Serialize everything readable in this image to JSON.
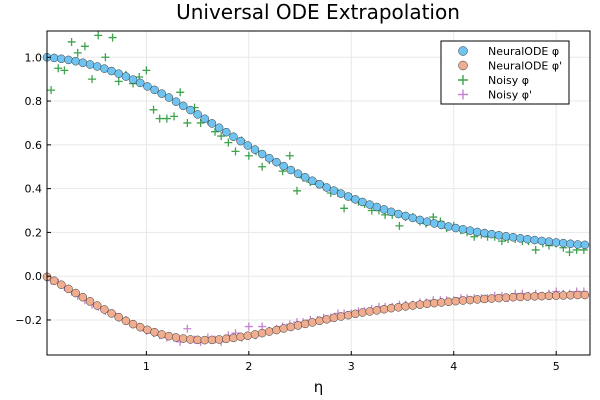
{
  "chart_data": {
    "type": "scatter",
    "title": "Universal ODE Extrapolation",
    "xlabel": "η",
    "ylabel": "",
    "xlim": [
      0.03,
      5.33
    ],
    "ylim": [
      -0.36,
      1.12
    ],
    "xticks": [
      1,
      2,
      3,
      4,
      5
    ],
    "yticks": [
      -0.2,
      0.0,
      0.2,
      0.4,
      0.6,
      0.8,
      1.0
    ],
    "xtick_labels": [
      "1",
      "2",
      "3",
      "4",
      "5"
    ],
    "ytick_labels": [
      "−0.2",
      "0.0",
      "0.2",
      "0.4",
      "0.6",
      "0.8",
      "1.0"
    ],
    "grid": true,
    "legend_position": "top-right",
    "series": [
      {
        "name": "NeuralODE φ",
        "marker": "circle",
        "color": "#6ec3f0",
        "x": [
          0.03,
          0.1,
          0.17,
          0.24,
          0.31,
          0.38,
          0.45,
          0.52,
          0.59,
          0.66,
          0.73,
          0.8,
          0.87,
          0.94,
          1.01,
          1.08,
          1.15,
          1.22,
          1.29,
          1.36,
          1.43,
          1.5,
          1.57,
          1.64,
          1.71,
          1.78,
          1.85,
          1.92,
          1.99,
          2.06,
          2.13,
          2.2,
          2.27,
          2.34,
          2.41,
          2.48,
          2.55,
          2.62,
          2.69,
          2.76,
          2.83,
          2.9,
          2.97,
          3.04,
          3.11,
          3.18,
          3.25,
          3.32,
          3.39,
          3.46,
          3.53,
          3.6,
          3.67,
          3.74,
          3.81,
          3.88,
          3.95,
          4.02,
          4.09,
          4.16,
          4.23,
          4.3,
          4.37,
          4.44,
          4.51,
          4.58,
          4.65,
          4.72,
          4.79,
          4.86,
          4.93,
          5.0,
          5.07,
          5.14,
          5.21,
          5.28
        ],
        "y": [
          1.0,
          0.997,
          0.993,
          0.988,
          0.982,
          0.975,
          0.967,
          0.958,
          0.948,
          0.937,
          0.925,
          0.912,
          0.898,
          0.883,
          0.867,
          0.851,
          0.834,
          0.816,
          0.797,
          0.778,
          0.759,
          0.739,
          0.719,
          0.698,
          0.678,
          0.658,
          0.637,
          0.617,
          0.597,
          0.578,
          0.558,
          0.539,
          0.521,
          0.503,
          0.485,
          0.468,
          0.452,
          0.436,
          0.42,
          0.405,
          0.391,
          0.377,
          0.364,
          0.351,
          0.339,
          0.327,
          0.316,
          0.305,
          0.294,
          0.284,
          0.275,
          0.266,
          0.257,
          0.249,
          0.241,
          0.234,
          0.227,
          0.22,
          0.214,
          0.208,
          0.202,
          0.197,
          0.192,
          0.187,
          0.182,
          0.178,
          0.173,
          0.169,
          0.165,
          0.161,
          0.158,
          0.154,
          0.151,
          0.148,
          0.145,
          0.143
        ]
      },
      {
        "name": "NeuralODE φ'",
        "marker": "circle",
        "color": "#f0ad8f",
        "x": [
          0.03,
          0.1,
          0.17,
          0.24,
          0.31,
          0.38,
          0.45,
          0.52,
          0.59,
          0.66,
          0.73,
          0.8,
          0.87,
          0.94,
          1.01,
          1.08,
          1.15,
          1.22,
          1.29,
          1.36,
          1.43,
          1.5,
          1.57,
          1.64,
          1.71,
          1.78,
          1.85,
          1.92,
          1.99,
          2.06,
          2.13,
          2.2,
          2.27,
          2.34,
          2.41,
          2.48,
          2.55,
          2.62,
          2.69,
          2.76,
          2.83,
          2.9,
          2.97,
          3.04,
          3.11,
          3.18,
          3.25,
          3.32,
          3.39,
          3.46,
          3.53,
          3.6,
          3.67,
          3.74,
          3.81,
          3.88,
          3.95,
          4.02,
          4.09,
          4.16,
          4.23,
          4.3,
          4.37,
          4.44,
          4.51,
          4.58,
          4.65,
          4.72,
          4.79,
          4.86,
          4.93,
          5.0,
          5.07,
          5.14,
          5.21,
          5.28
        ],
        "y": [
          -0.003,
          -0.021,
          -0.039,
          -0.058,
          -0.077,
          -0.096,
          -0.115,
          -0.134,
          -0.152,
          -0.17,
          -0.187,
          -0.204,
          -0.219,
          -0.233,
          -0.245,
          -0.256,
          -0.266,
          -0.274,
          -0.28,
          -0.285,
          -0.289,
          -0.291,
          -0.292,
          -0.291,
          -0.289,
          -0.286,
          -0.282,
          -0.277,
          -0.272,
          -0.266,
          -0.26,
          -0.253,
          -0.246,
          -0.239,
          -0.232,
          -0.225,
          -0.218,
          -0.211,
          -0.204,
          -0.197,
          -0.19,
          -0.184,
          -0.178,
          -0.172,
          -0.166,
          -0.161,
          -0.156,
          -0.151,
          -0.146,
          -0.142,
          -0.138,
          -0.134,
          -0.13,
          -0.126,
          -0.123,
          -0.12,
          -0.117,
          -0.114,
          -0.111,
          -0.109,
          -0.106,
          -0.104,
          -0.102,
          -0.1,
          -0.098,
          -0.096,
          -0.095,
          -0.093,
          -0.092,
          -0.091,
          -0.09,
          -0.089,
          -0.088,
          -0.087,
          -0.086,
          -0.086
        ]
      },
      {
        "name": "Noisy φ",
        "marker": "plus",
        "color": "#3da44d",
        "x": [
          0.07,
          0.14,
          0.2,
          0.27,
          0.33,
          0.4,
          0.47,
          0.53,
          0.6,
          0.67,
          0.73,
          0.8,
          0.87,
          0.93,
          1.0,
          1.07,
          1.13,
          1.2,
          1.27,
          1.33,
          1.4,
          1.47,
          1.53,
          1.6,
          1.67,
          1.73,
          1.8,
          1.87,
          1.93,
          2.0,
          2.07,
          2.13,
          2.2,
          2.27,
          2.33,
          2.4,
          2.47,
          2.53,
          2.6,
          2.67,
          2.73,
          2.8,
          2.87,
          2.93,
          3.0,
          3.07,
          3.13,
          3.2,
          3.27,
          3.33,
          3.4,
          3.47,
          3.53,
          3.6,
          3.67,
          3.73,
          3.8,
          3.87,
          3.93,
          4.0,
          4.07,
          4.13,
          4.2,
          4.27,
          4.33,
          4.4,
          4.47,
          4.53,
          4.6,
          4.67,
          4.73,
          4.8,
          4.87,
          4.93,
          5.0,
          5.07,
          5.13,
          5.2,
          5.27
        ],
        "y": [
          0.85,
          0.95,
          0.94,
          1.07,
          1.02,
          1.05,
          0.9,
          1.1,
          1.0,
          1.09,
          0.89,
          0.92,
          0.88,
          0.91,
          0.94,
          0.76,
          0.72,
          0.72,
          0.73,
          0.84,
          0.7,
          0.77,
          0.7,
          0.71,
          0.66,
          0.64,
          0.61,
          0.57,
          0.62,
          0.55,
          0.57,
          0.5,
          0.53,
          0.52,
          0.48,
          0.55,
          0.39,
          0.45,
          0.43,
          0.42,
          0.41,
          0.38,
          0.38,
          0.31,
          0.36,
          0.34,
          0.33,
          0.3,
          0.3,
          0.28,
          0.28,
          0.23,
          0.27,
          0.27,
          0.25,
          0.24,
          0.27,
          0.25,
          0.22,
          0.23,
          0.21,
          0.2,
          0.18,
          0.19,
          0.18,
          0.18,
          0.16,
          0.17,
          0.17,
          0.16,
          0.16,
          0.12,
          0.15,
          0.14,
          0.15,
          0.13,
          0.11,
          0.12,
          0.12
        ]
      },
      {
        "name": "Noisy φ'",
        "marker": "plus",
        "color": "#c683d6",
        "x": [
          0.07,
          0.14,
          0.2,
          0.27,
          0.33,
          0.4,
          0.47,
          0.53,
          0.6,
          0.67,
          0.73,
          0.8,
          0.87,
          0.93,
          1.0,
          1.07,
          1.13,
          1.2,
          1.27,
          1.33,
          1.4,
          1.47,
          1.53,
          1.6,
          1.67,
          1.73,
          1.8,
          1.87,
          1.93,
          2.0,
          2.07,
          2.13,
          2.2,
          2.27,
          2.33,
          2.4,
          2.47,
          2.53,
          2.6,
          2.67,
          2.73,
          2.8,
          2.87,
          2.93,
          3.0,
          3.07,
          3.13,
          3.2,
          3.27,
          3.33,
          3.4,
          3.47,
          3.53,
          3.6,
          3.67,
          3.73,
          3.8,
          3.87,
          3.93,
          4.0,
          4.07,
          4.13,
          4.2,
          4.27,
          4.33,
          4.4,
          4.47,
          4.53,
          4.6,
          4.67,
          4.73,
          4.8,
          4.87,
          4.93,
          5.0,
          5.07,
          5.13,
          5.2,
          5.27
        ],
        "y": [
          -0.02,
          -0.03,
          -0.05,
          -0.07,
          -0.09,
          -0.11,
          -0.13,
          -0.14,
          -0.16,
          -0.17,
          -0.19,
          -0.2,
          -0.22,
          -0.23,
          -0.25,
          -0.26,
          -0.27,
          -0.28,
          -0.28,
          -0.3,
          -0.24,
          -0.29,
          -0.3,
          -0.28,
          -0.29,
          -0.3,
          -0.27,
          -0.26,
          -0.28,
          -0.23,
          -0.27,
          -0.23,
          -0.25,
          -0.24,
          -0.23,
          -0.22,
          -0.21,
          -0.21,
          -0.2,
          -0.2,
          -0.19,
          -0.19,
          -0.17,
          -0.17,
          -0.17,
          -0.16,
          -0.16,
          -0.15,
          -0.14,
          -0.14,
          -0.14,
          -0.13,
          -0.13,
          -0.13,
          -0.12,
          -0.12,
          -0.11,
          -0.11,
          -0.11,
          -0.11,
          -0.1,
          -0.1,
          -0.1,
          -0.1,
          -0.1,
          -0.09,
          -0.09,
          -0.1,
          -0.08,
          -0.08,
          -0.09,
          -0.08,
          -0.09,
          -0.08,
          -0.07,
          -0.08,
          -0.08,
          -0.07,
          -0.07
        ]
      }
    ]
  }
}
